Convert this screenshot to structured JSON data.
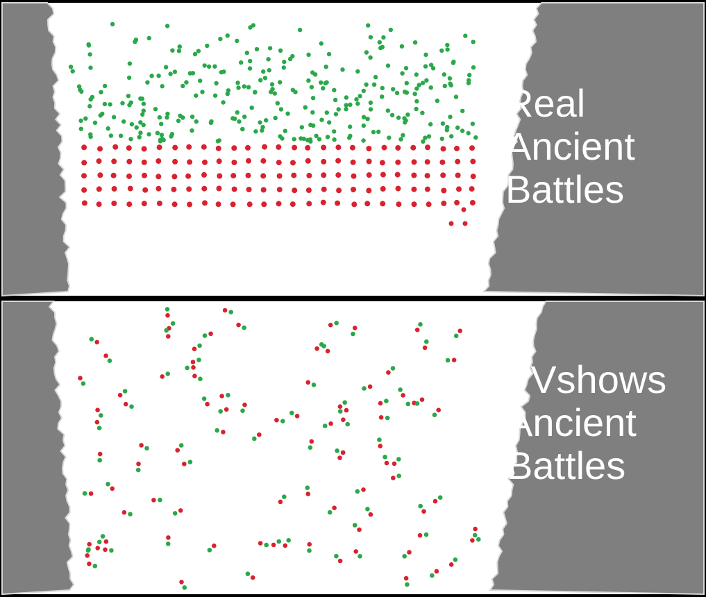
{
  "panels": [
    {
      "caption_lines": [
        "Real",
        "Ancient",
        "Battles"
      ],
      "formation": "ordered"
    },
    {
      "caption_lines": [
        "TVshows",
        "Ancient",
        "Battles"
      ],
      "formation": "scattered-pairs"
    }
  ],
  "colors": {
    "background": "#ffffff",
    "terrain": "#7f7f7f",
    "border": "#000000",
    "army_green": "#2aa84a",
    "army_red": "#d9222f"
  }
}
